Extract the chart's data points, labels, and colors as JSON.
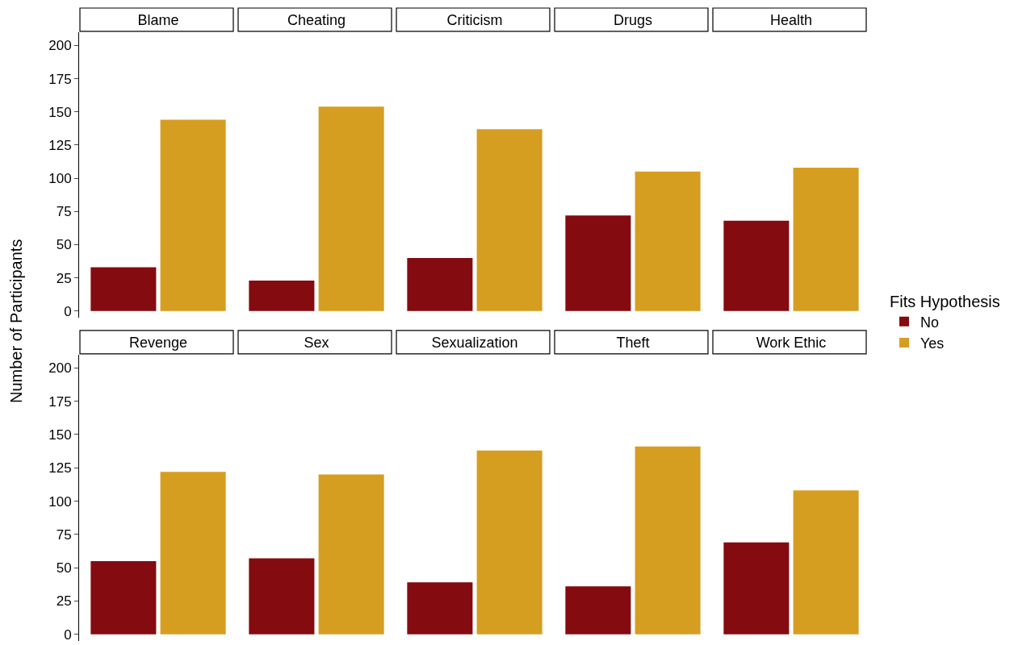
{
  "chart_data": [
    {
      "type": "bar",
      "categories": [
        "Blame",
        "Cheating",
        "Criticism",
        "Drugs",
        "Health"
      ],
      "series": [
        {
          "name": "No",
          "color": "#840b10",
          "values": [
            33,
            23,
            40,
            72,
            68
          ]
        },
        {
          "name": "Yes",
          "color": "#d69e21",
          "values": [
            144,
            154,
            137,
            105,
            108
          ]
        }
      ],
      "ylim": [
        -5,
        210
      ],
      "yticks": [
        0,
        25,
        50,
        75,
        100,
        125,
        150,
        175,
        200
      ],
      "ylabel": "Number of Participants",
      "legend": "right",
      "legend_title": "Fits Hypothesis"
    },
    {
      "type": "bar",
      "categories": [
        "Revenge",
        "Sex",
        "Sexualization",
        "Theft",
        "Work Ethic"
      ],
      "series": [
        {
          "name": "No",
          "color": "#840b10",
          "values": [
            55,
            57,
            39,
            36,
            69
          ]
        },
        {
          "name": "Yes",
          "color": "#d69e21",
          "values": [
            122,
            120,
            138,
            141,
            108
          ]
        }
      ],
      "ylim": [
        -5,
        210
      ],
      "yticks": [
        0,
        25,
        50,
        75,
        100,
        125,
        150,
        175,
        200
      ],
      "legend": "right"
    }
  ]
}
